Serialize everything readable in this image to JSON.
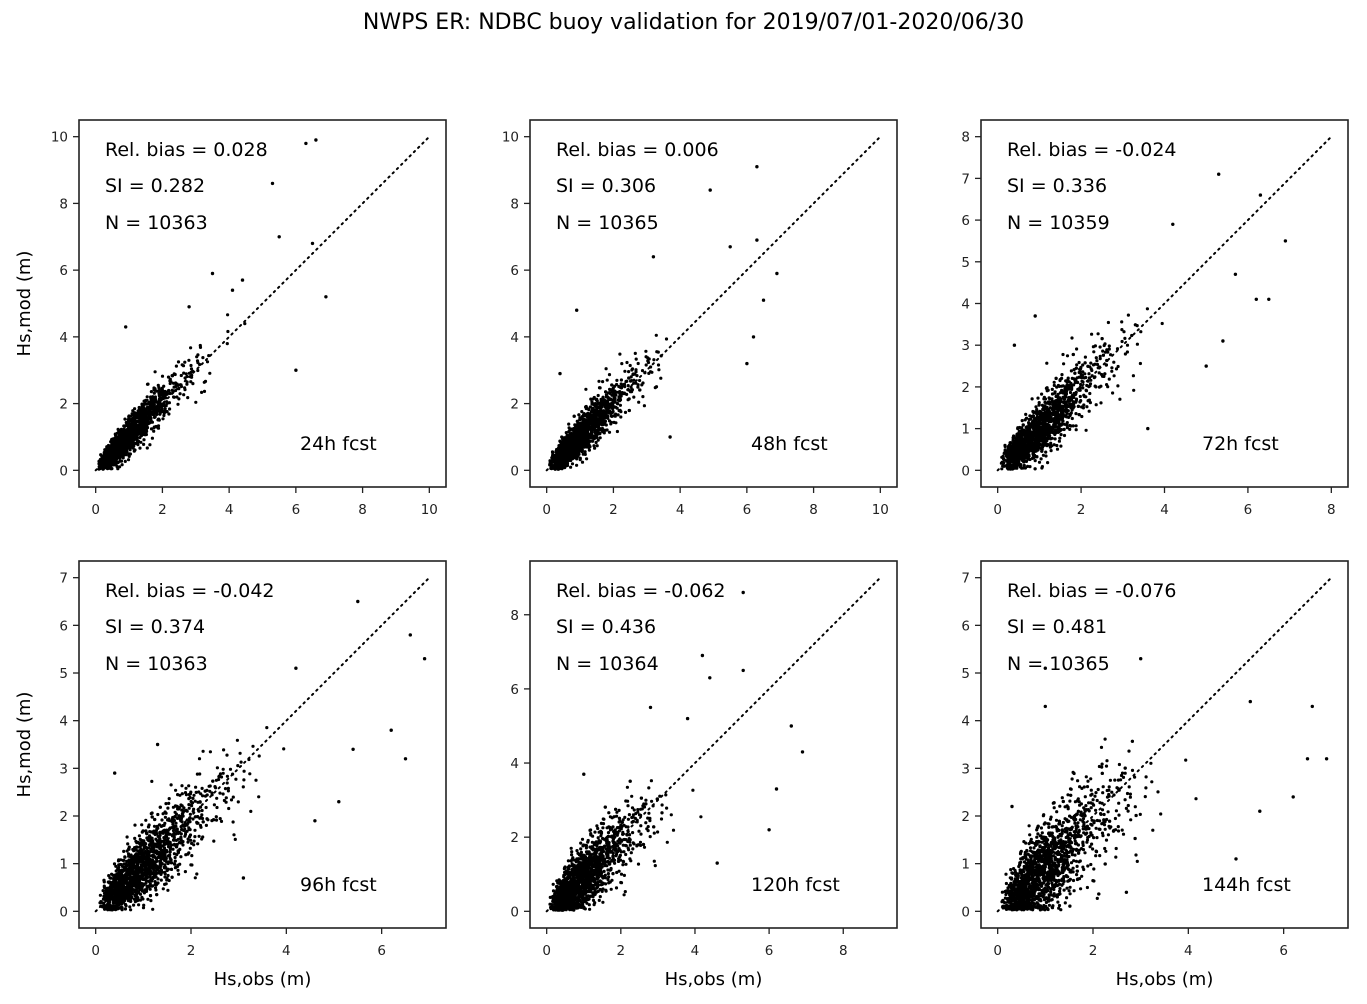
{
  "title": "NWPS ER: NDBC buoy validation for 2019/07/01-2020/06/30",
  "chart_data": [
    {
      "type": "scatter",
      "panel": "24h fcst",
      "forecast_label": "24h fcst",
      "stats": {
        "rel_bias_label": "Rel. bias =  0.028",
        "si_label": "SI =  0.282",
        "n_label": "N = 10363",
        "rel_bias": 0.028,
        "si": 0.282,
        "n": 10363
      },
      "xlabel": "",
      "ylabel": "Hs,mod (m)",
      "xlim": [
        -0.5,
        10.5
      ],
      "ylim": [
        -0.5,
        10.5
      ],
      "xticks": [
        0,
        2,
        4,
        6,
        8,
        10
      ],
      "yticks": [
        0,
        2,
        4,
        6,
        8,
        10
      ],
      "one_to_one_max": 10,
      "outliers": [
        [
          6.3,
          9.8
        ],
        [
          6.6,
          9.9
        ],
        [
          5.3,
          8.6
        ],
        [
          5.5,
          7.0
        ],
        [
          6.5,
          6.8
        ],
        [
          3.5,
          5.9
        ],
        [
          4.4,
          5.7
        ],
        [
          6.9,
          5.2
        ],
        [
          6.0,
          3.0
        ],
        [
          0.9,
          4.3
        ],
        [
          2.8,
          4.9
        ],
        [
          4.1,
          5.4
        ]
      ],
      "bulk_spread": 0.25
    },
    {
      "type": "scatter",
      "panel": "48h fcst",
      "forecast_label": "48h fcst",
      "stats": {
        "rel_bias_label": "Rel. bias =  0.006",
        "si_label": "SI =  0.306",
        "n_label": "N = 10365",
        "rel_bias": 0.006,
        "si": 0.306,
        "n": 10365
      },
      "xlabel": "",
      "ylabel": "",
      "xlim": [
        -0.5,
        10.5
      ],
      "ylim": [
        -0.5,
        10.5
      ],
      "xticks": [
        0,
        2,
        4,
        6,
        8,
        10
      ],
      "yticks": [
        0,
        2,
        4,
        6,
        8,
        10
      ],
      "one_to_one_max": 10,
      "outliers": [
        [
          6.3,
          9.1
        ],
        [
          4.9,
          8.4
        ],
        [
          5.5,
          6.7
        ],
        [
          6.3,
          6.9
        ],
        [
          3.2,
          6.4
        ],
        [
          6.9,
          5.9
        ],
        [
          6.5,
          5.1
        ],
        [
          0.9,
          4.8
        ],
        [
          6.0,
          3.2
        ],
        [
          6.2,
          4.0
        ],
        [
          3.7,
          1.0
        ],
        [
          0.4,
          2.9
        ]
      ],
      "bulk_spread": 0.28
    },
    {
      "type": "scatter",
      "panel": "72h fcst",
      "forecast_label": "72h fcst",
      "stats": {
        "rel_bias_label": "Rel. bias = -0.024",
        "si_label": "SI =  0.336",
        "n_label": "N = 10359",
        "rel_bias": -0.024,
        "si": 0.336,
        "n": 10359
      },
      "xlabel": "",
      "ylabel": "",
      "xlim": [
        -0.4,
        8.4
      ],
      "ylim": [
        -0.4,
        8.4
      ],
      "xticks": [
        0,
        2,
        4,
        6,
        8
      ],
      "yticks": [
        0,
        1,
        2,
        3,
        4,
        5,
        6,
        7,
        8
      ],
      "one_to_one_max": 8,
      "outliers": [
        [
          5.3,
          7.1
        ],
        [
          6.3,
          6.6
        ],
        [
          4.2,
          5.9
        ],
        [
          6.9,
          5.5
        ],
        [
          6.2,
          4.1
        ],
        [
          6.5,
          4.1
        ],
        [
          5.7,
          4.7
        ],
        [
          0.9,
          3.7
        ],
        [
          0.4,
          3.0
        ],
        [
          5.4,
          3.1
        ],
        [
          5.0,
          2.5
        ],
        [
          3.6,
          1.0
        ]
      ],
      "bulk_spread": 0.32
    },
    {
      "type": "scatter",
      "panel": "96h fcst",
      "forecast_label": "96h fcst",
      "stats": {
        "rel_bias_label": "Rel. bias = -0.042",
        "si_label": "SI =  0.374",
        "n_label": "N = 10363",
        "rel_bias": -0.042,
        "si": 0.374,
        "n": 10363
      },
      "xlabel": "Hs,obs (m)",
      "ylabel": "Hs,mod (m)",
      "xlim": [
        -0.35,
        7.35
      ],
      "ylim": [
        -0.35,
        7.35
      ],
      "xticks": [
        0,
        2,
        4,
        6
      ],
      "yticks": [
        0,
        1,
        2,
        3,
        4,
        5,
        6,
        7
      ],
      "one_to_one_max": 7,
      "outliers": [
        [
          5.5,
          6.5
        ],
        [
          6.6,
          5.8
        ],
        [
          6.9,
          5.3
        ],
        [
          4.2,
          5.1
        ],
        [
          6.5,
          3.2
        ],
        [
          6.2,
          3.8
        ],
        [
          5.4,
          3.4
        ],
        [
          0.4,
          2.9
        ],
        [
          3.1,
          0.7
        ],
        [
          5.1,
          2.3
        ],
        [
          4.6,
          1.9
        ],
        [
          1.3,
          3.5
        ]
      ],
      "bulk_spread": 0.36
    },
    {
      "type": "scatter",
      "panel": "120h fcst",
      "forecast_label": "120h fcst",
      "stats": {
        "rel_bias_label": "Rel. bias = -0.062",
        "si_label": "SI =  0.436",
        "n_label": "N = 10364",
        "rel_bias": -0.062,
        "si": 0.436,
        "n": 10364
      },
      "xlabel": "Hs,obs (m)",
      "ylabel": "",
      "xlim": [
        -0.45,
        9.45
      ],
      "ylim": [
        -0.45,
        9.45
      ],
      "xticks": [
        0,
        2,
        4,
        6,
        8
      ],
      "yticks": [
        0,
        2,
        4,
        6,
        8
      ],
      "one_to_one_max": 9,
      "outliers": [
        [
          5.3,
          8.6
        ],
        [
          4.2,
          6.9
        ],
        [
          5.3,
          6.5
        ],
        [
          4.4,
          6.3
        ],
        [
          2.8,
          5.5
        ],
        [
          3.8,
          5.2
        ],
        [
          6.6,
          5.0
        ],
        [
          6.9,
          4.3
        ],
        [
          6.2,
          3.3
        ],
        [
          6.0,
          2.2
        ],
        [
          4.6,
          1.3
        ],
        [
          1.0,
          3.7
        ]
      ],
      "bulk_spread": 0.42
    },
    {
      "type": "scatter",
      "panel": "144h fcst",
      "forecast_label": "144h fcst",
      "stats": {
        "rel_bias_label": "Rel. bias = -0.076",
        "si_label": "SI =  0.481",
        "n_label": "N = 10365",
        "rel_bias": -0.076,
        "si": 0.481,
        "n": 10365
      },
      "xlabel": "Hs,obs (m)",
      "ylabel": "",
      "xlim": [
        -0.35,
        7.35
      ],
      "ylim": [
        -0.35,
        7.35
      ],
      "xticks": [
        0,
        2,
        4,
        6
      ],
      "yticks": [
        0,
        1,
        2,
        3,
        4,
        5,
        6,
        7
      ],
      "one_to_one_max": 7,
      "outliers": [
        [
          3.0,
          5.3
        ],
        [
          1.0,
          5.1
        ],
        [
          1.0,
          4.3
        ],
        [
          6.6,
          4.3
        ],
        [
          5.3,
          4.4
        ],
        [
          6.9,
          3.2
        ],
        [
          6.5,
          3.2
        ],
        [
          6.2,
          2.4
        ],
        [
          5.5,
          2.1
        ],
        [
          5.0,
          1.1
        ],
        [
          2.7,
          0.4
        ],
        [
          0.3,
          2.2
        ]
      ],
      "bulk_spread": 0.46
    }
  ]
}
